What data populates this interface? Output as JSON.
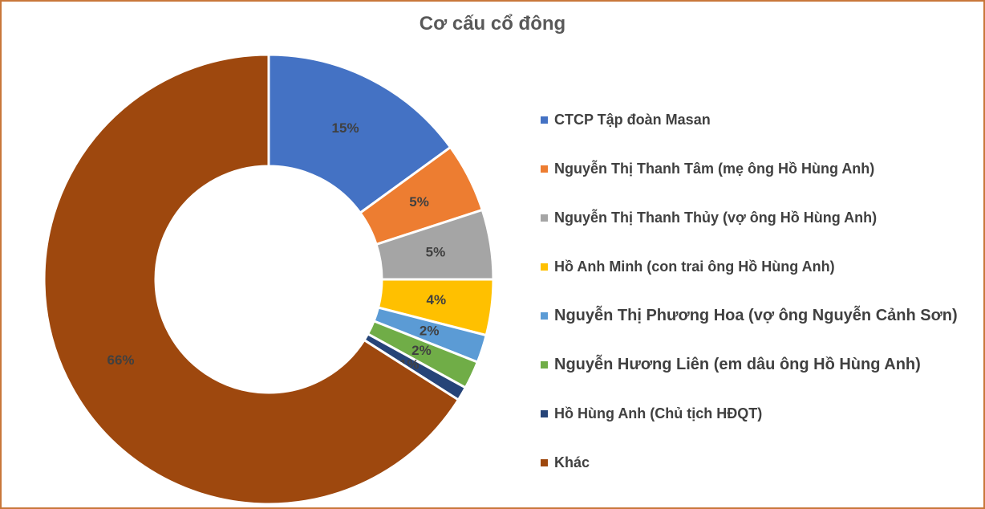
{
  "chart_data": {
    "type": "pie",
    "title": "Cơ cấu cổ đông",
    "legend_position": "right",
    "series": [
      {
        "categories": [
          "CTCP Tập đoàn Masan",
          "Nguyễn Thị Thanh Tâm (mẹ ông Hồ Hùng Anh)",
          "Nguyễn Thị Thanh Thủy (vợ ông Hồ Hùng Anh)",
          "Hồ Anh Minh (con trai ông Hồ Hùng Anh)",
          "Nguyễn Thị Phương Hoa (vợ ông Nguyễn Cảnh Sơn)",
          "Nguyễn Hương Liên (em dâu ông Hồ Hùng Anh)",
          "Hồ Hùng Anh (Chủ tịch HĐQT)",
          "Khác"
        ],
        "values": [
          15,
          5,
          5,
          4,
          2,
          2,
          1,
          66
        ],
        "data_labels": [
          "15%",
          "5%",
          "5%",
          "4%",
          "2%",
          "2%",
          "1%",
          "66%"
        ],
        "colors": [
          "#4472c4",
          "#ed7d31",
          "#a5a5a5",
          "#ffc000",
          "#5b9bd5",
          "#70ad47",
          "#264478",
          "#9e480e"
        ]
      }
    ],
    "donut": true
  }
}
